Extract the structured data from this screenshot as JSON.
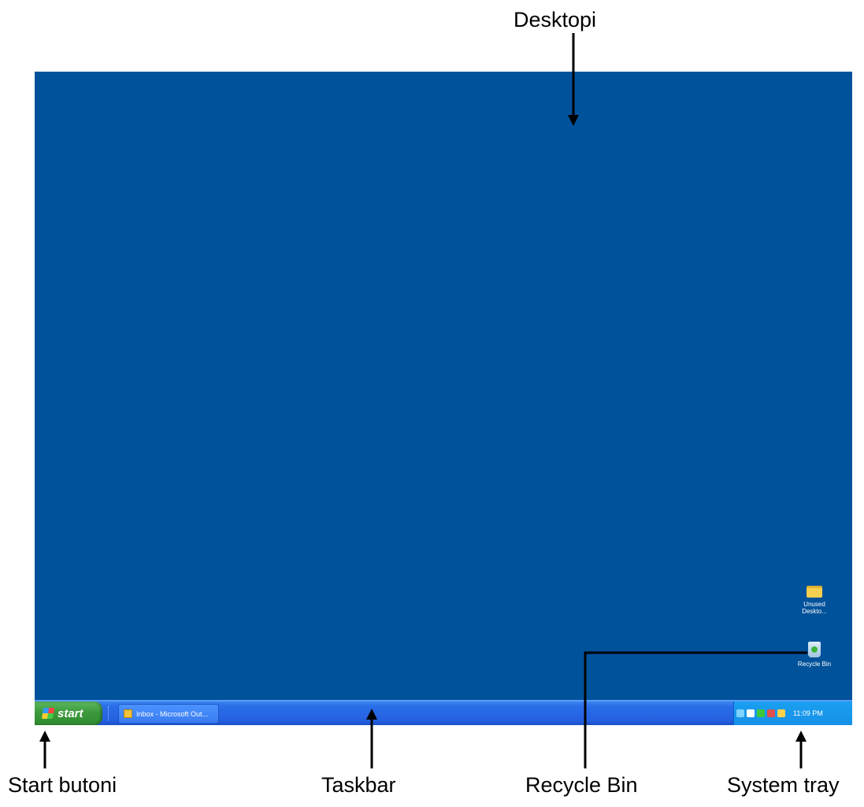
{
  "annotations": {
    "desktop": "Desktopi",
    "start_button": "Start butoni",
    "taskbar": "Taskbar",
    "recycle_bin": "Recycle Bin",
    "system_tray": "System tray"
  },
  "screen": {
    "background_color": "#00529b",
    "taskbar": {
      "start_label": "start",
      "task_button_label": "Inbox - Microsoft Out...",
      "tray_icons": [
        "network-icon",
        "volume-icon",
        "shield-icon",
        "security-icon",
        "update-icon"
      ],
      "clock": "11:09 PM"
    },
    "desktop_icons": [
      {
        "icon": "folder-icon",
        "label": "Unused Deskto..."
      },
      {
        "icon": "recycle-bin-icon",
        "label": "Recycle Bin"
      }
    ]
  }
}
